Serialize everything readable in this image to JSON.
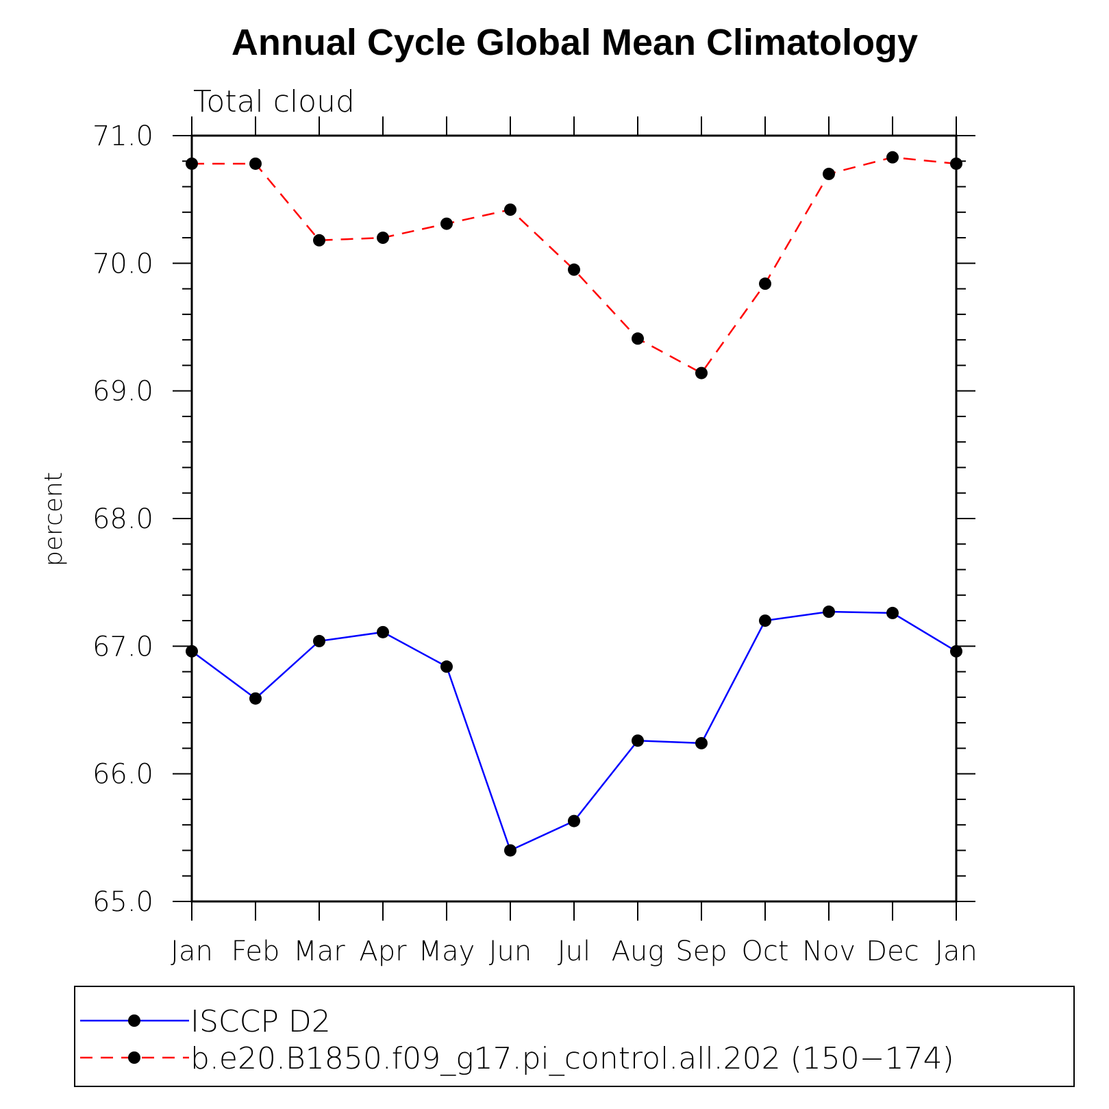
{
  "chart_data": {
    "type": "line",
    "title": "Annual Cycle Global Mean Climatology",
    "subtitle": "Total cloud",
    "ylabel": "percent",
    "xlabel": "",
    "categories": [
      "Jan",
      "Feb",
      "Mar",
      "Apr",
      "May",
      "Jun",
      "Jul",
      "Aug",
      "Sep",
      "Oct",
      "Nov",
      "Dec",
      "Jan"
    ],
    "ylim": [
      65.0,
      71.0
    ],
    "yticks": [
      "65.0",
      "66.0",
      "67.0",
      "68.0",
      "69.0",
      "70.0",
      "71.0"
    ],
    "grid": false,
    "legend_position": "bottom",
    "series": [
      {
        "name": "ISCCP D2",
        "color": "#0000ff",
        "line_style": "solid",
        "marker": "filled-circle",
        "values": [
          66.96,
          66.59,
          67.04,
          67.11,
          66.84,
          65.4,
          65.63,
          66.26,
          66.24,
          67.2,
          67.27,
          67.26,
          66.96
        ]
      },
      {
        "name": "b.e20.B1850.f09_g17.pi_control.all.202 (150−174)",
        "color": "#ff0000",
        "line_style": "dashed",
        "marker": "filled-circle",
        "values": [
          70.78,
          70.78,
          70.18,
          70.2,
          70.31,
          70.42,
          69.95,
          69.41,
          69.14,
          69.84,
          70.7,
          70.83,
          70.78
        ]
      }
    ]
  }
}
